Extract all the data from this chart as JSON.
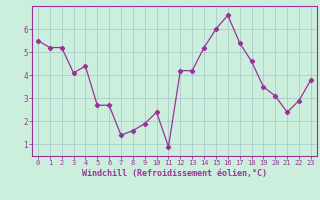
{
  "x": [
    0,
    1,
    2,
    3,
    4,
    5,
    6,
    7,
    8,
    9,
    10,
    11,
    12,
    13,
    14,
    15,
    16,
    17,
    18,
    19,
    20,
    21,
    22,
    23
  ],
  "y": [
    5.5,
    5.2,
    5.2,
    4.1,
    4.4,
    2.7,
    2.7,
    1.4,
    1.6,
    1.9,
    2.4,
    0.9,
    4.2,
    4.2,
    5.2,
    6.0,
    6.6,
    5.4,
    4.6,
    3.5,
    3.1,
    2.4,
    2.9,
    3.8
  ],
  "line_color": "#993399",
  "marker": "D",
  "markersize": 2.2,
  "linewidth": 0.9,
  "xlabel": "Windchill (Refroidissement éolien,°C)",
  "xlabel_color": "#993399",
  "background_color": "#cceedd",
  "grid_color": "#aacccc",
  "tick_color": "#993399",
  "ylim": [
    0.5,
    7.0
  ],
  "xlim": [
    -0.5,
    23.5
  ],
  "yticks": [
    1,
    2,
    3,
    4,
    5,
    6
  ],
  "xticks": [
    0,
    1,
    2,
    3,
    4,
    5,
    6,
    7,
    8,
    9,
    10,
    11,
    12,
    13,
    14,
    15,
    16,
    17,
    18,
    19,
    20,
    21,
    22,
    23
  ],
  "xtick_labels": [
    "0",
    "1",
    "2",
    "3",
    "4",
    "5",
    "6",
    "7",
    "8",
    "9",
    "10",
    "11",
    "12",
    "13",
    "14",
    "15",
    "16",
    "17",
    "18",
    "19",
    "20",
    "21",
    "22",
    "23"
  ],
  "tick_fontsize": 5.0,
  "xlabel_fontsize": 6.0,
  "spine_color": "#993399"
}
